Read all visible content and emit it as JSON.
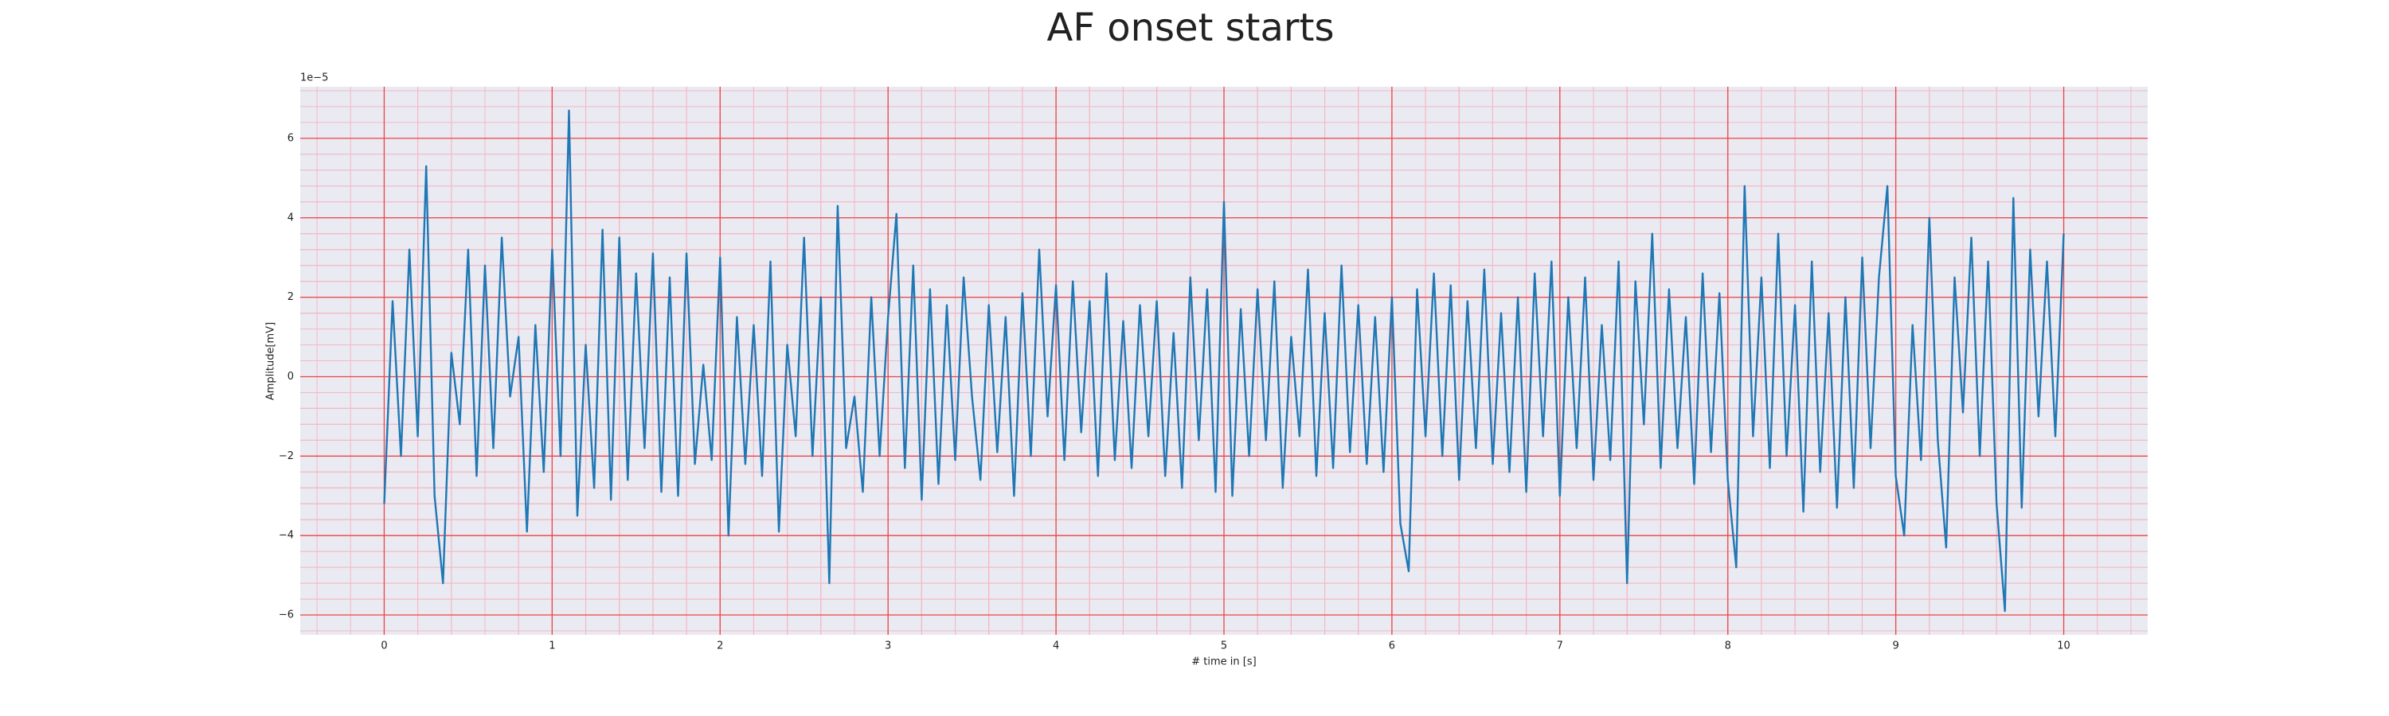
{
  "chart_data": {
    "type": "line",
    "title": "AF onset starts",
    "xlabel": "# time in [s]",
    "ylabel": "Amplitude[mV]",
    "offset_text": "1e−5",
    "color": "#1f77b4",
    "grid": true,
    "minor_grid": true,
    "xlim": [
      -0.5,
      10.5
    ],
    "ylim": [
      -6.5,
      7.3
    ],
    "xticks": [
      0,
      1,
      2,
      3,
      4,
      5,
      6,
      7,
      8,
      9,
      10
    ],
    "yticks": [
      {
        "value": -6,
        "label": "−6"
      },
      {
        "value": -4,
        "label": "−4"
      },
      {
        "value": -2,
        "label": "−2"
      },
      0,
      2,
      4,
      6
    ],
    "x": [
      0,
      0.05,
      0.1,
      0.15,
      0.2,
      0.25,
      0.3,
      0.35,
      0.4,
      0.45,
      0.5,
      0.55,
      0.6,
      0.65,
      0.7,
      0.75,
      0.8,
      0.85,
      0.9,
      0.95,
      1,
      1.05,
      1.1,
      1.15,
      1.2,
      1.25,
      1.3,
      1.35,
      1.4,
      1.45,
      1.5,
      1.55,
      1.6,
      1.65,
      1.7,
      1.75,
      1.8,
      1.85,
      1.9,
      1.95,
      2,
      2.05,
      2.1,
      2.15,
      2.2,
      2.25,
      2.3,
      2.35,
      2.4,
      2.45,
      2.5,
      2.55,
      2.6,
      2.65,
      2.7,
      2.75,
      2.8,
      2.85,
      2.9,
      2.95,
      3,
      3.05,
      3.1,
      3.15,
      3.2,
      3.25,
      3.3,
      3.35,
      3.4,
      3.45,
      3.5,
      3.55,
      3.6,
      3.65,
      3.7,
      3.75,
      3.8,
      3.85,
      3.9,
      3.95,
      4,
      4.05,
      4.1,
      4.15,
      4.2,
      4.25,
      4.3,
      4.35,
      4.4,
      4.45,
      4.5,
      4.55,
      4.6,
      4.65,
      4.7,
      4.75,
      4.8,
      4.85,
      4.9,
      4.95,
      5,
      5.05,
      5.1,
      5.15,
      5.2,
      5.25,
      5.3,
      5.35,
      5.4,
      5.45,
      5.5,
      5.55,
      5.6,
      5.65,
      5.7,
      5.75,
      5.8,
      5.85,
      5.9,
      5.95,
      6,
      6.05,
      6.1,
      6.15,
      6.2,
      6.25,
      6.3,
      6.35,
      6.4,
      6.45,
      6.5,
      6.55,
      6.6,
      6.65,
      6.7,
      6.75,
      6.8,
      6.85,
      6.9,
      6.95,
      7,
      7.05,
      7.1,
      7.15,
      7.2,
      7.25,
      7.3,
      7.35,
      7.4,
      7.45,
      7.5,
      7.55,
      7.6,
      7.65,
      7.7,
      7.75,
      7.8,
      7.85,
      7.9,
      7.95,
      8,
      8.05,
      8.1,
      8.15,
      8.2,
      8.25,
      8.3,
      8.35,
      8.4,
      8.45,
      8.5,
      8.55,
      8.6,
      8.65,
      8.7,
      8.75,
      8.8,
      8.85,
      8.9,
      8.95,
      9,
      9.05,
      9.1,
      9.15,
      9.2,
      9.25,
      9.3,
      9.35,
      9.4,
      9.45,
      9.5,
      9.55,
      9.6,
      9.65,
      9.7,
      9.75,
      9.8,
      9.85,
      9.9,
      9.95,
      10
    ],
    "values": [
      -3.2,
      1.9,
      -2.0,
      3.2,
      -1.5,
      5.3,
      -3.0,
      -5.2,
      0.6,
      -1.2,
      3.2,
      -2.5,
      2.8,
      -1.8,
      3.5,
      -0.5,
      1.0,
      -3.9,
      1.3,
      -2.4,
      3.2,
      -2.0,
      6.7,
      -3.5,
      0.8,
      -2.8,
      3.7,
      -3.1,
      3.5,
      -2.6,
      2.6,
      -1.8,
      3.1,
      -2.9,
      2.5,
      -3.0,
      3.1,
      -2.2,
      0.3,
      -2.1,
      3.0,
      -4.0,
      1.5,
      -2.2,
      1.3,
      -2.5,
      2.9,
      -3.9,
      0.8,
      -1.5,
      3.5,
      -2.0,
      2.0,
      -5.2,
      4.3,
      -1.8,
      -0.5,
      -2.9,
      2.0,
      -2.0,
      1.5,
      4.1,
      -2.3,
      2.8,
      -3.1,
      2.2,
      -2.7,
      1.8,
      -2.1,
      2.5,
      -0.5,
      -2.6,
      1.8,
      -1.9,
      1.5,
      -3.0,
      2.1,
      -2.0,
      3.2,
      -1.0,
      2.3,
      -2.1,
      2.4,
      -1.4,
      1.9,
      -2.5,
      2.6,
      -2.1,
      1.4,
      -2.3,
      1.8,
      -1.5,
      1.9,
      -2.5,
      1.1,
      -2.8,
      2.5,
      -1.6,
      2.2,
      -2.9,
      4.4,
      -3.0,
      1.7,
      -2.0,
      2.2,
      -1.6,
      2.4,
      -2.8,
      1.0,
      -1.5,
      2.7,
      -2.5,
      1.6,
      -2.3,
      2.8,
      -1.9,
      1.8,
      -2.2,
      1.5,
      -2.4,
      2.0,
      -3.7,
      -4.9,
      2.2,
      -1.5,
      2.6,
      -2.0,
      2.3,
      -2.6,
      1.9,
      -1.8,
      2.7,
      -2.2,
      1.6,
      -2.4,
      2.0,
      -2.9,
      2.6,
      -1.5,
      2.9,
      -3.0,
      2.0,
      -1.8,
      2.5,
      -2.6,
      1.3,
      -2.1,
      2.9,
      -5.2,
      2.4,
      -1.2,
      3.6,
      -2.3,
      2.2,
      -1.8,
      1.5,
      -2.7,
      2.6,
      -1.9,
      2.1,
      -2.6,
      -4.8,
      4.8,
      -1.5,
      2.5,
      -2.3,
      3.6,
      -2.0,
      1.8,
      -3.4,
      2.9,
      -2.4,
      1.6,
      -3.3,
      2.0,
      -2.8,
      3.0,
      -1.8,
      2.5,
      4.8,
      -2.5,
      -4.0,
      1.3,
      -2.1,
      4.0,
      -1.6,
      -4.3,
      2.5,
      -0.9,
      3.5,
      -2.0,
      2.9,
      -3.2,
      -5.9,
      4.5,
      -3.3,
      3.2,
      -1.0,
      2.9,
      -1.5,
      3.6
    ]
  }
}
